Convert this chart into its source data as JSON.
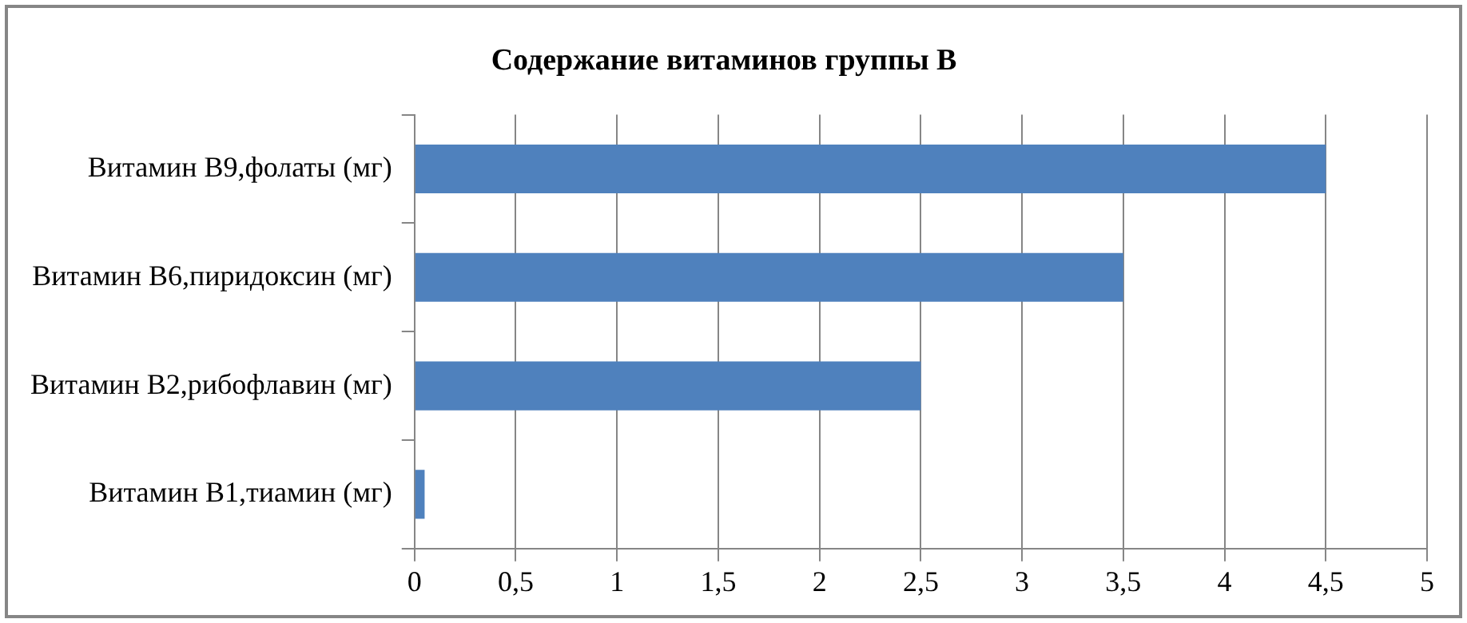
{
  "chart_data": {
    "type": "bar",
    "orientation": "horizontal",
    "title": "Содержание витаминов группы В",
    "categories": [
      "Витамин В9,фолаты (мг)",
      "Витамин В6,пиридоксин (мг)",
      "Витамин В2,рибофлавин (мг)",
      "Витамин В1,тиамин (мг)"
    ],
    "values": [
      4.5,
      3.5,
      2.5,
      0.05
    ],
    "color": "#4f81bd",
    "xlim": [
      0,
      5
    ],
    "xticks": [
      0,
      {
        "value": 0.5,
        "label": "0,5"
      },
      1,
      {
        "value": 1.5,
        "label": "1,5"
      },
      2,
      {
        "value": 2.5,
        "label": "2,5"
      },
      3,
      {
        "value": 3.5,
        "label": "3,5"
      },
      4,
      {
        "value": 4.5,
        "label": "4,5"
      },
      5
    ],
    "grid": "x",
    "legend": false
  }
}
